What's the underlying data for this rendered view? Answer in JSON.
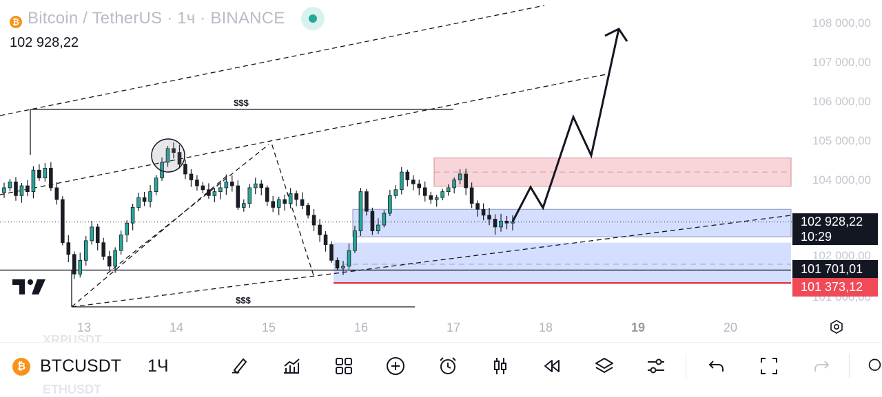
{
  "header": {
    "title": "Bitcoin / TetherUS · 1ч · BINANCE",
    "last_price": "102 928,22",
    "coin_glyph": "₿"
  },
  "price_axis": {
    "labels": [
      "108 000,00",
      "107 000,00",
      "106 000,00",
      "105 000,00",
      "104 000,00",
      "102 000,00",
      "101 000,00"
    ],
    "current_price_tag": "102 928,22",
    "countdown": "10:29",
    "level_tag": "101 701,01",
    "stop_tag": "101 373,12"
  },
  "time_axis": {
    "labels": [
      "13",
      "14",
      "15",
      "16",
      "17",
      "18",
      "19",
      "20"
    ],
    "bold_label": "19"
  },
  "annotations": {
    "liquidity_top": "$$$",
    "liquidity_bottom": "$$$"
  },
  "background_ghost": {
    "upper": "XRPUSDT",
    "lower": "ETHUSDT"
  },
  "bottom_bar": {
    "symbol": "BTCUSDT",
    "interval": "1Ч",
    "tools": [
      "brush-icon",
      "indicators-icon",
      "layouts-icon",
      "add-icon",
      "alarm-icon",
      "candles-icon",
      "replay-icon",
      "layers-icon",
      "settings-sliders-icon",
      "undo-icon",
      "fullscreen-icon",
      "redo-icon"
    ]
  },
  "colors": {
    "up": "#26a69a",
    "candle": "#1a1d24",
    "supply_zone": "#f7d5d9",
    "demand_zone": "#d4deff",
    "stop_line": "#e53945",
    "tag_dark": "#131722",
    "tag_red": "#ef4a56"
  },
  "chart_data": {
    "type": "candlestick",
    "symbol": "BTCUSDT",
    "interval": "1h",
    "x_dates": [
      "13",
      "14",
      "15",
      "16",
      "17",
      "18",
      "19",
      "20"
    ],
    "ylim": [
      101000,
      108000
    ],
    "last_price": 102928.22,
    "levels": {
      "current": 102928.22,
      "key_level": 101701.01,
      "stop": 101373.12
    },
    "zones": [
      {
        "type": "supply",
        "from": 103840,
        "to": 104560
      },
      {
        "type": "demand",
        "from": 102550,
        "to": 103250
      },
      {
        "type": "demand",
        "from": 101350,
        "to": 102400
      }
    ],
    "close_path": [
      103800,
      103950,
      103600,
      103850,
      103700,
      104250,
      104050,
      104300,
      103800,
      103500,
      102400,
      102100,
      101600,
      101950,
      102450,
      102800,
      102400,
      102050,
      101800,
      102200,
      102600,
      102900,
      103300,
      103550,
      103450,
      103700,
      104050,
      104450,
      104800,
      104700,
      104400,
      104150,
      104000,
      103850,
      103750,
      103600,
      103700,
      103800,
      103950,
      103850,
      103300,
      103400,
      103800,
      103900,
      103800,
      103450,
      103300,
      103500,
      103400,
      103650,
      103500,
      103350,
      103100,
      102850,
      102600,
      102350,
      101950,
      101750,
      101800,
      102200,
      102700,
      103700,
      103200,
      102700,
      102850,
      103150,
      103600,
      103750,
      104200,
      104000,
      103900,
      103800,
      103600,
      103500,
      103550,
      103700,
      103800,
      104000,
      104150,
      103800,
      103400,
      103250,
      103100,
      103000,
      102800,
      102950,
      102900,
      102928
    ]
  }
}
